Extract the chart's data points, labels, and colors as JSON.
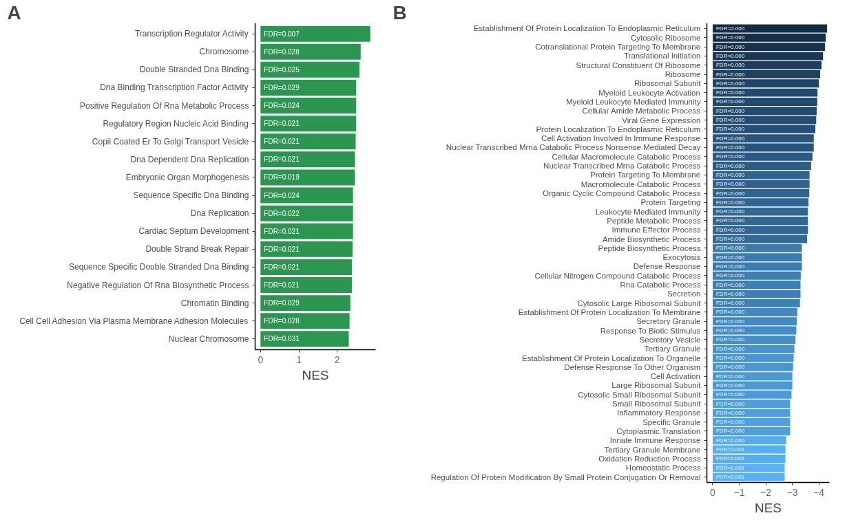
{
  "chart_data": [
    {
      "type": "bar",
      "orientation": "horizontal",
      "xlabel": "NES",
      "grid": false,
      "categories": [
        "Transcription Regulator Activity",
        "Chromosome",
        "Double Stranded Dna Binding",
        "Dna Binding Transcription Factor Activity",
        "Positive Regulation Of Rna Metabolic Process",
        "Regulatory Region Nucleic Acid Binding",
        "Copii Coated Er To Golgi Transport Vesicle",
        "Dna Dependent Dna Replication",
        "Embryonic Organ Morphogenesis",
        "Sequence Specific Dna Binding",
        "Dna Replication",
        "Cardiac Septum Development",
        "Double Strand Break Repair",
        "Sequence Specific Double Stranded Dna Binding",
        "Negative Regulation Of Rna Biosynthetic Process",
        "Chromatin Binding",
        "Cell Cell Adhesion Via Plasma Membrane Adhesion Molecules",
        "Nuclear Chromosome"
      ],
      "values": [
        2.86,
        2.61,
        2.58,
        2.49,
        2.49,
        2.49,
        2.48,
        2.46,
        2.46,
        2.41,
        2.41,
        2.41,
        2.4,
        2.38,
        2.38,
        2.34,
        2.32,
        2.3
      ],
      "color": "#2a9650",
      "xlim": [
        -0.14,
        3.0
      ],
      "xticks": [
        0,
        1,
        2
      ],
      "annotations": [
        "A",
        {
          "text": "FDR=0.007",
          "y": "Transcription Regulator Activity"
        },
        {
          "text": "FDR=0.028",
          "y": "Chromosome"
        },
        {
          "text": "FDR=0.025",
          "y": "Double Stranded Dna Binding"
        },
        {
          "text": "FDR=0.029",
          "y": "Dna Binding Transcription Factor Activity"
        },
        {
          "text": "FDR=0.024",
          "y": "Positive Regulation Of Rna Metabolic Process"
        },
        {
          "text": "FDR=0.021",
          "y": "Regulatory Region Nucleic Acid Binding"
        },
        {
          "text": "FDR=0.021",
          "y": "Copii Coated Er To Golgi Transport Vesicle"
        },
        {
          "text": "FDR=0.021",
          "y": "Dna Dependent Dna Replication"
        },
        {
          "text": "FDR=0.019",
          "y": "Embryonic Organ Morphogenesis"
        },
        {
          "text": "FDR=0.024",
          "y": "Sequence Specific Dna Binding"
        },
        {
          "text": "FDR=0.022",
          "y": "Dna Replication"
        },
        {
          "text": "FDR=0.021",
          "y": "Cardiac Septum Development"
        },
        {
          "text": "FDR=0.021",
          "y": "Double Strand Break Repair"
        },
        {
          "text": "FDR=0.021",
          "y": "Sequence Specific Double Stranded Dna Binding"
        },
        {
          "text": "FDR=0.021",
          "y": "Negative Regulation Of Rna Biosynthetic Process"
        },
        {
          "text": "FDR=0.029",
          "y": "Chromatin Binding"
        },
        {
          "text": "FDR=0.028",
          "y": "Cell Cell Adhesion Via Plasma Membrane Adhesion Molecules"
        },
        {
          "text": "FDR=0.031",
          "y": "Nuclear Chromosome"
        }
      ]
    },
    {
      "type": "bar",
      "orientation": "horizontal",
      "xlabel": "NES",
      "grid": false,
      "categories": [
        "Establishment Of Protein Localization To Endoplasmic Reticulum",
        "Cytosolic Ribosome",
        "Cotranslational Protein Targeting To Membrane",
        "Translational Initiation",
        "Structural Constituent Of Ribosome",
        "Ribosome",
        "Ribosomal Subunit",
        "Myeloid Leukocyte Activation",
        "Myeloid Leukocyte Mediated Immunity",
        "Cellular Amide Metabolic Process",
        "Viral Gene Expression",
        "Protein Localization To Endoplasmic Reticulum",
        "Cell Activation Involved In Immune Response",
        "Nuclear Transcribed Mrna Catabolic Process Nonsense Mediated Decay",
        "Cellular Macromolecule Catabolic Process",
        "Nuclear Transcribed Mrna Catabolic Process",
        "Protein Targeting To Membrane",
        "Macromolecule Catabolic Process",
        "Organic Cyclic Compound Catabolic Process",
        "Protein Targeting",
        "Leukocyte Mediated Immunity",
        "Peptide Metabolic Process",
        "Immune Effector Process",
        "Amide Biosynthetic Process",
        "Peptide Biosynthetic Process",
        "Exocytosis",
        "Defense Response",
        "Cellular Nitrogen Compound Catabolic Process",
        "Rna Catabolic Process",
        "Secretion",
        "Cytosolic Large Ribosomal Subunit",
        "Establishment Of Protein Localization To Membrane",
        "Secretory Granule",
        "Response To Biotic Stimulus",
        "Secretory Vesicle",
        "Tertiary Granule",
        "Establishment Of Protein Localization To Organelle",
        "Defense Response To Other Organism",
        "Cell Activation",
        "Large Ribosomal Subunit",
        "Cytosolic Small Ribosomal Subunit",
        "Small Ribosomal Subunit",
        "Inflammatory Response",
        "Specific Granule",
        "Cytoplasmic Translation",
        "Innate Immune Response",
        "Tertiary Granule Membrane",
        "Oxidation Reduction Process",
        "Homeostatic Process",
        "Regulation Of Protein Modification By Small Protein Conjugation Or Removal"
      ],
      "values": [
        -4.31,
        -4.26,
        -4.23,
        -4.16,
        -4.1,
        -4.05,
        -4.0,
        -3.95,
        -3.94,
        -3.92,
        -3.9,
        -3.87,
        -3.81,
        -3.81,
        -3.76,
        -3.71,
        -3.65,
        -3.65,
        -3.64,
        -3.61,
        -3.59,
        -3.59,
        -3.59,
        -3.56,
        -3.36,
        -3.36,
        -3.36,
        -3.32,
        -3.31,
        -3.31,
        -3.29,
        -3.19,
        -3.17,
        -3.15,
        -3.12,
        -3.08,
        -3.05,
        -3.03,
        -3.0,
        -3.0,
        -2.97,
        -2.92,
        -2.92,
        -2.92,
        -2.92,
        -2.77,
        -2.74,
        -2.74,
        -2.71,
        -2.71
      ],
      "colors": [
        "#132b43",
        "#152f49",
        "#16324c",
        "#193854",
        "#1c3d5b",
        "#1e4160",
        "#204566",
        "#22496c",
        "#224a6d",
        "#234c6f",
        "#244d71",
        "#255075",
        "#28557b",
        "#28557b",
        "#2a5981",
        "#2c5d86",
        "#2f628d",
        "#2f628d",
        "#2f638e",
        "#306692",
        "#316794",
        "#316794",
        "#316794",
        "#326a97",
        "#3b7bae",
        "#3b7bae",
        "#3b7bae",
        "#3c7eb2",
        "#3d7fb4",
        "#3d7fb4",
        "#3e80b6",
        "#4289c1",
        "#438ac3",
        "#448cc6",
        "#458fc9",
        "#4792cd",
        "#4895d1",
        "#4996d3",
        "#4a99d6",
        "#4a99d6",
        "#4b9bda",
        "#4d9fdf",
        "#4d9fdf",
        "#4d9fdf",
        "#4d9fdf",
        "#53acf0",
        "#55aef4",
        "#55aef4",
        "#56b1f7",
        "#56b1f7"
      ],
      "xlim": [
        0.22,
        -4.4
      ],
      "xticks": [
        0,
        -1,
        -2,
        -3,
        -4
      ],
      "annotations": [
        "B",
        {
          "text": "FDR=0.000",
          "y": "Establishment Of Protein Localization To Endoplasmic Reticulum"
        },
        {
          "text": "FDR=0.000",
          "y": "Cytosolic Ribosome"
        },
        {
          "text": "FDR=0.000",
          "y": "Cotranslational Protein Targeting To Membrane"
        },
        {
          "text": "FDR=0.000",
          "y": "Translational Initiation"
        },
        {
          "text": "FDR=0.000",
          "y": "Structural Constituent Of Ribosome"
        },
        {
          "text": "FDR=0.000",
          "y": "Ribosome"
        },
        {
          "text": "FDR=0.000",
          "y": "Ribosomal Subunit"
        },
        {
          "text": "FDR=0.000",
          "y": "Myeloid Leukocyte Activation"
        },
        {
          "text": "FDR=0.000",
          "y": "Myeloid Leukocyte Mediated Immunity"
        },
        {
          "text": "FDR=0.000",
          "y": "Cellular Amide Metabolic Process"
        },
        {
          "text": "FDR=0.000",
          "y": "Viral Gene Expression"
        },
        {
          "text": "FDR=0.000",
          "y": "Protein Localization To Endoplasmic Reticulum"
        },
        {
          "text": "FDR=0.000",
          "y": "Cell Activation Involved In Immune Response"
        },
        {
          "text": "FDR=0.000",
          "y": "Nuclear Transcribed Mrna Catabolic Process Nonsense Mediated Decay"
        },
        {
          "text": "FDR=0.000",
          "y": "Cellular Macromolecule Catabolic Process"
        },
        {
          "text": "FDR=0.000",
          "y": "Nuclear Transcribed Mrna Catabolic Process"
        },
        {
          "text": "FDR=0.000",
          "y": "Protein Targeting To Membrane"
        },
        {
          "text": "FDR=0.000",
          "y": "Macromolecule Catabolic Process"
        },
        {
          "text": "FDR=0.000",
          "y": "Organic Cyclic Compound Catabolic Process"
        },
        {
          "text": "FDR=0.000",
          "y": "Protein Targeting"
        },
        {
          "text": "FDR=0.000",
          "y": "Leukocyte Mediated Immunity"
        },
        {
          "text": "FDR=0.000",
          "y": "Peptide Metabolic Process"
        },
        {
          "text": "FDR=0.000",
          "y": "Immune Effector Process"
        },
        {
          "text": "FDR=0.000",
          "y": "Amide Biosynthetic Process"
        },
        {
          "text": "FDR=0.000",
          "y": "Peptide Biosynthetic Process"
        },
        {
          "text": "FDR=0.000",
          "y": "Exocytosis"
        },
        {
          "text": "FDR=0.000",
          "y": "Defense Response"
        },
        {
          "text": "FDR=0.000",
          "y": "Cellular Nitrogen Compound Catabolic Process"
        },
        {
          "text": "FDR=0.000",
          "y": "Rna Catabolic Process"
        },
        {
          "text": "FDR=0.000",
          "y": "Secretion"
        },
        {
          "text": "FDR=0.000",
          "y": "Cytosolic Large Ribosomal Subunit"
        },
        {
          "text": "FDR=0.000",
          "y": "Establishment Of Protein Localization To Membrane"
        },
        {
          "text": "FDR=0.000",
          "y": "Secretory Granule"
        },
        {
          "text": "FDR=0.000",
          "y": "Response To Biotic Stimulus"
        },
        {
          "text": "FDR=0.000",
          "y": "Secretory Vesicle"
        },
        {
          "text": "FDR=0.000",
          "y": "Tertiary Granule"
        },
        {
          "text": "FDR=0.000",
          "y": "Establishment Of Protein Localization To Organelle"
        },
        {
          "text": "FDR=0.000",
          "y": "Defense Response To Other Organism"
        },
        {
          "text": "FDR=0.000",
          "y": "Cell Activation"
        },
        {
          "text": "FDR=0.000",
          "y": "Large Ribosomal Subunit"
        },
        {
          "text": "FDR=0.000",
          "y": "Cytosolic Small Ribosomal Subunit"
        },
        {
          "text": "FDR=0.000",
          "y": "Small Ribosomal Subunit"
        },
        {
          "text": "FDR=0.000",
          "y": "Inflammatory Response"
        },
        {
          "text": "FDR=0.000",
          "y": "Specific Granule"
        },
        {
          "text": "FDR=0.000",
          "y": "Cytoplasmic Translation"
        },
        {
          "text": "FDR=0.000",
          "y": "Innate Immune Response"
        },
        {
          "text": "FDR=0.001",
          "y": "Tertiary Granule Membrane"
        },
        {
          "text": "FDR=0.001",
          "y": "Oxidation Reduction Process"
        },
        {
          "text": "FDR=0.001",
          "y": "Homeostatic Process"
        },
        {
          "text": "FDR=0.001",
          "y": "Regulation Of Protein Modification By Small Protein Conjugation Or Removal"
        }
      ]
    }
  ]
}
